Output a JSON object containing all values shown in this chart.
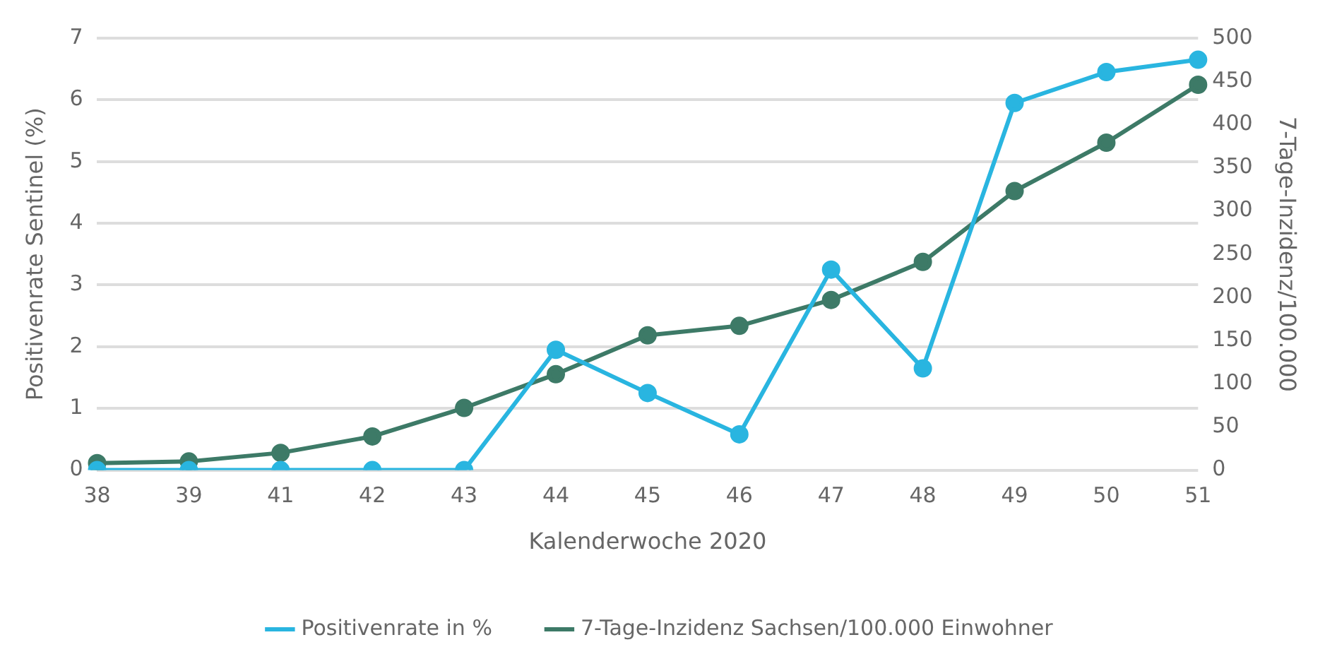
{
  "chart_data": {
    "type": "line",
    "xlabel": "Kalenderwoche 2020",
    "ylabel": "Positivenrate Sentinel (%)",
    "y2label": "7-Tage-Inzidenz/100.000",
    "categories": [
      "38",
      "39",
      "41",
      "42",
      "43",
      "44",
      "45",
      "46",
      "47",
      "48",
      "49",
      "50",
      "51"
    ],
    "series": [
      {
        "name": "Positivenrate in %",
        "color": "#29b5e0",
        "values": [
          0,
          0,
          0,
          0,
          0,
          1.95,
          1.25,
          0.58,
          3.25,
          1.65,
          5.95,
          6.45,
          6.65
        ]
      },
      {
        "name": "7-Tage-Inzidenz Sachsen/100.000 Einwohner",
        "color": "#3d7a67",
        "axis": "y2",
        "values": [
          8,
          10,
          20,
          39,
          72,
          111,
          156,
          167,
          197,
          241,
          323,
          379,
          446
        ]
      }
    ],
    "ylim": [
      0,
      7
    ],
    "yticks": [
      0,
      1,
      2,
      3,
      4,
      5,
      6,
      7
    ],
    "y2lim": [
      0,
      500
    ],
    "y2ticks": [
      0,
      50,
      100,
      150,
      200,
      250,
      300,
      350,
      400,
      450,
      500
    ],
    "grid": "y",
    "legend": "bottom",
    "marker": "circle",
    "line_style": "solid"
  }
}
